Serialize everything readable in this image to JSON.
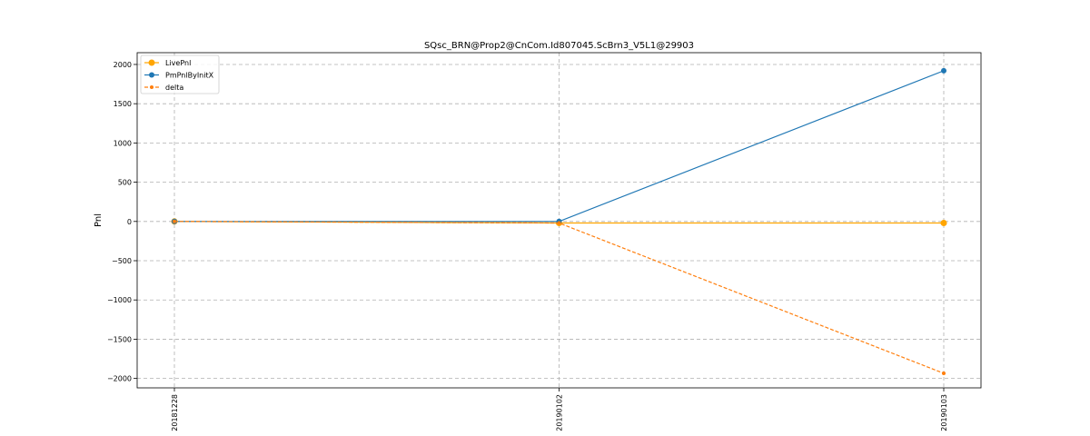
{
  "chart_data": {
    "type": "line",
    "title": "SQsc_BRN@Prop2@CnCom.Id807045.ScBrn3_V5L1@29903",
    "xlabel": "",
    "ylabel": "Pnl",
    "categories": [
      "20181228",
      "20190102",
      "20190103"
    ],
    "ylim": [
      -2120,
      2150
    ],
    "yticks": [
      -2000,
      -1500,
      -1000,
      -500,
      0,
      500,
      1000,
      1500,
      2000
    ],
    "grid": true,
    "legend_position": "top-left",
    "series": [
      {
        "name": "LivePnl",
        "values": [
          0,
          -20,
          -20
        ],
        "color": "#ffa500",
        "line_style": "solid",
        "marker": "circle-large"
      },
      {
        "name": "PmPnlByInitX",
        "values": [
          0,
          0,
          1920
        ],
        "color": "#1f77b4",
        "line_style": "solid",
        "marker": "circle"
      },
      {
        "name": "delta",
        "values": [
          0,
          -20,
          -1935
        ],
        "color": "#ff7f0e",
        "line_style": "dashed",
        "marker": "circle-small"
      }
    ]
  }
}
